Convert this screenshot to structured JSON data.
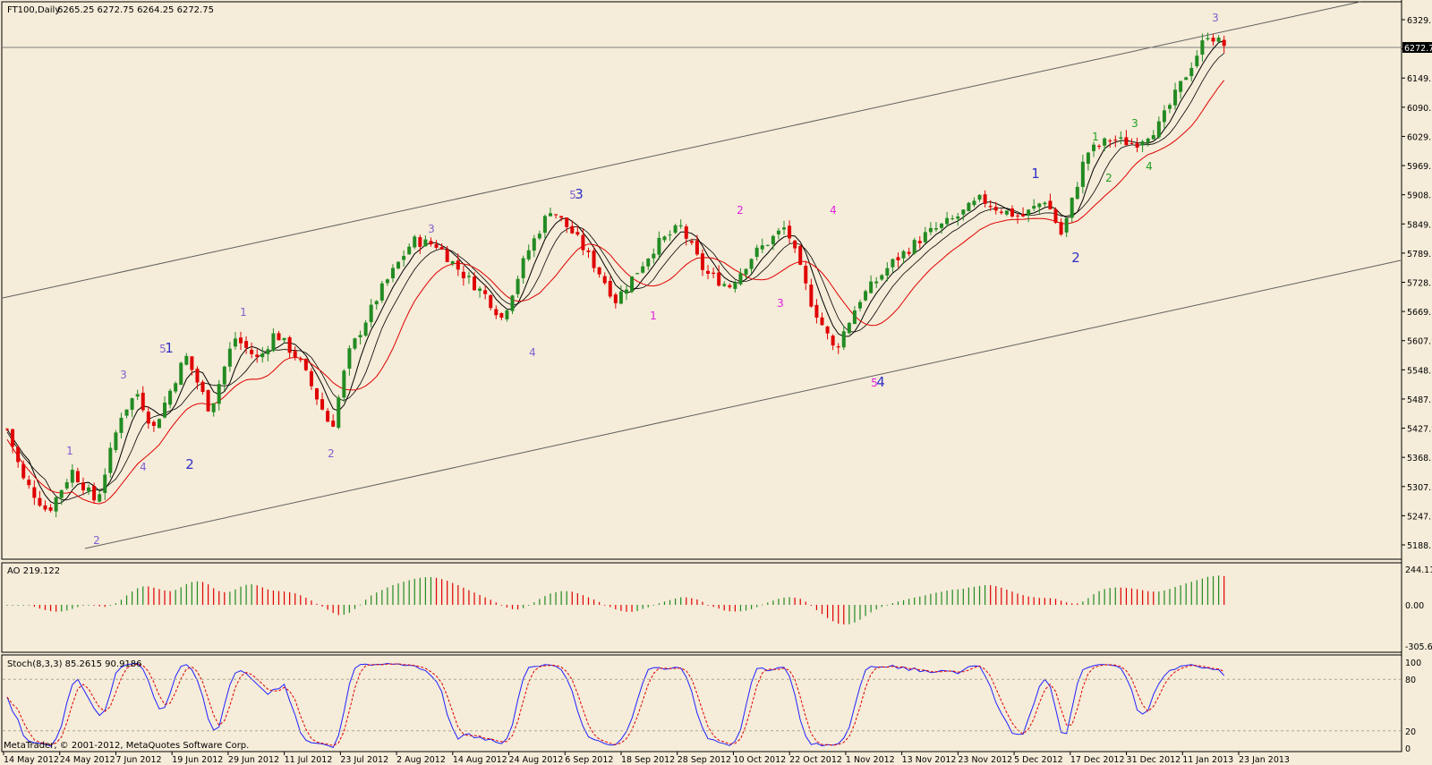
{
  "window": {
    "symbol_header": "FT100,Daily",
    "ohlc_header": "6265.25 6272.75 6264.25 6272.75",
    "copyright": "MetaTrader, © 2001-2012, MetaQuotes Software Corp."
  },
  "colors": {
    "background": "#f5ecd9",
    "bull": "#228b22",
    "bear": "#e00000",
    "ma_black": "#000000",
    "ma_red": "#e00000",
    "stoch_main": "#2020ff",
    "stoch_signal": "#e00000",
    "wave_blue": "#3030c8",
    "wave_purple": "#8060d0",
    "wave_magenta": "#e020e0",
    "wave_green": "#20a020"
  },
  "main_panel": {
    "price_axis": [
      "6329.75",
      "6210.90",
      "6149.70",
      "6090.30",
      "6029.10",
      "5969.70",
      "5908.50",
      "5849.10",
      "5789.70",
      "5728.50",
      "5669.10",
      "5607.90",
      "5548.50",
      "5487.30",
      "5427.90",
      "5368.50",
      "5307.30",
      "5247.90",
      "5188.50"
    ],
    "price_top": 6329.75,
    "price_bottom": 5188.5,
    "current_price": "6272.75",
    "date_axis": [
      "14 May 2012",
      "24 May 2012",
      "7 Jun 2012",
      "19 Jun 2012",
      "29 Jun 2012",
      "11 Jul 2012",
      "23 Jul 2012",
      "2 Aug 2012",
      "14 Aug 2012",
      "24 Aug 2012",
      "6 Sep 2012",
      "18 Sep 2012",
      "28 Sep 2012",
      "10 Oct 2012",
      "22 Oct 2012",
      "1 Nov 2012",
      "13 Nov 2012",
      "23 Nov 2012",
      "5 Dec 2012",
      "17 Dec 2012",
      "31 Dec 2012",
      "11 Jan 2013",
      "23 Jan 2013"
    ]
  },
  "wave_labels": [
    {
      "text": "1",
      "color": "purple"
    },
    {
      "text": "2",
      "color": "purple"
    },
    {
      "text": "3",
      "color": "purple"
    },
    {
      "text": "4",
      "color": "purple"
    },
    {
      "text": "5",
      "color": "purple"
    },
    {
      "text": "1",
      "color": "blue"
    },
    {
      "text": "2",
      "color": "blue"
    },
    {
      "text": "1",
      "color": "purple"
    },
    {
      "text": "2",
      "color": "purple"
    },
    {
      "text": "3",
      "color": "purple"
    },
    {
      "text": "4",
      "color": "purple"
    },
    {
      "text": "5",
      "color": "purple"
    },
    {
      "text": "3",
      "color": "blue"
    },
    {
      "text": "1",
      "color": "magenta"
    },
    {
      "text": "2",
      "color": "magenta"
    },
    {
      "text": "3",
      "color": "magenta"
    },
    {
      "text": "4",
      "color": "magenta"
    },
    {
      "text": "5",
      "color": "magenta"
    },
    {
      "text": "4",
      "color": "blue"
    },
    {
      "text": "1",
      "color": "blue"
    },
    {
      "text": "2",
      "color": "blue"
    },
    {
      "text": "1",
      "color": "green"
    },
    {
      "text": "2",
      "color": "green"
    },
    {
      "text": "3",
      "color": "green"
    },
    {
      "text": "4",
      "color": "green"
    },
    {
      "text": "3",
      "color": "purple"
    }
  ],
  "ao_panel": {
    "label": "AO 219.122",
    "axis": [
      "244.112",
      "0.00",
      "-305.663"
    ],
    "max": 244.112,
    "min": -305.663
  },
  "stoch_panel": {
    "label": "Stoch(8,3,3) 85.2615 90.9186",
    "axis": [
      "100",
      "80",
      "20",
      "0"
    ]
  },
  "chart_data": {
    "type": "candlestick",
    "symbol": "FT100",
    "timeframe": "Daily",
    "key_points": [
      {
        "date": "14 May 2012",
        "close": 5440
      },
      {
        "date": "1 Jun 2012",
        "close": 5260
      },
      {
        "date": "19 Jun 2012",
        "close": 5590
      },
      {
        "date": "24 Jul 2012",
        "close": 5450
      },
      {
        "date": "14 Aug 2012",
        "close": 5850
      },
      {
        "date": "4 Sep 2012",
        "close": 5660
      },
      {
        "date": "14 Sep 2012",
        "close": 5920
      },
      {
        "date": "26 Sep 2012",
        "close": 5720
      },
      {
        "date": "12 Oct 2012",
        "close": 5880
      },
      {
        "date": "23 Oct 2012",
        "close": 5750
      },
      {
        "date": "2 Nov 2012",
        "close": 5880
      },
      {
        "date": "16 Nov 2012",
        "close": 5610
      },
      {
        "date": "13 Dec 2012",
        "close": 5940
      },
      {
        "date": "20 Dec 2012",
        "close": 5860
      },
      {
        "date": "2 Jan 2013",
        "close": 6030
      },
      {
        "date": "25 Jan 2013",
        "close": 6290
      },
      {
        "date": "30 Jan 2013",
        "close": 6272.75
      }
    ]
  }
}
